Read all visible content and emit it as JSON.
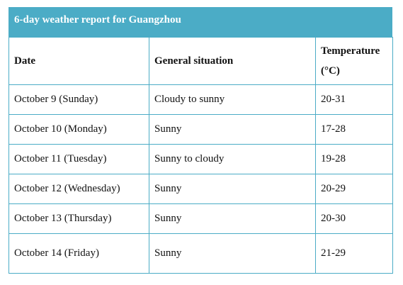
{
  "header": {
    "title": "6-day weather report for Guangzhou"
  },
  "table": {
    "columns": [
      "Date",
      "General situation",
      "Temperature (°C)"
    ],
    "rows": [
      [
        "October 9 (Sunday)",
        "Cloudy to sunny",
        "20-31"
      ],
      [
        "October 10 (Monday)",
        "Sunny",
        "17-28"
      ],
      [
        "October 11 (Tuesday)",
        "Sunny to cloudy",
        "19-28"
      ],
      [
        "October 12 (Wednesday)",
        "Sunny",
        "20-29"
      ],
      [
        "October 13 (Thursday)",
        "Sunny",
        "20-30"
      ],
      [
        "October 14 (Friday)",
        "Sunny",
        "21-29"
      ]
    ]
  }
}
